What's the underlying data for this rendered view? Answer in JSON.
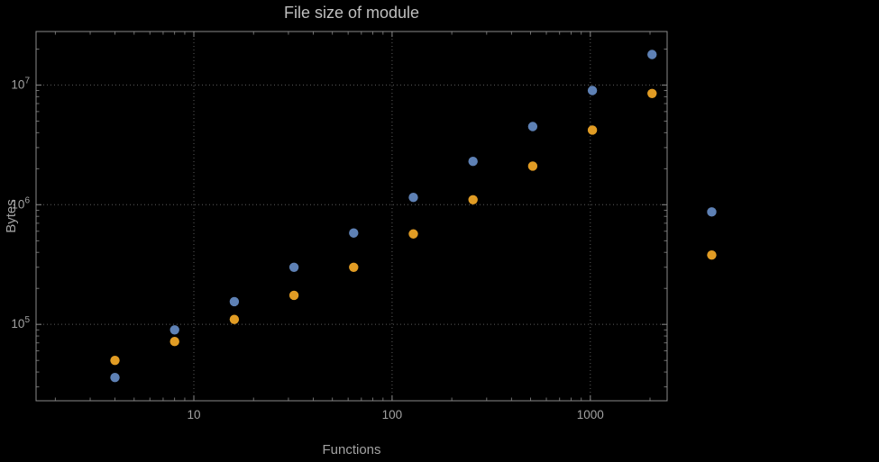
{
  "colors": {
    "background": "#000000",
    "frame": "#8a8a8a",
    "grid": "#5c5c5c",
    "tick_text": "#a2a2a2",
    "title_text": "#bfbfbf",
    "series_blue": "#5E81B5",
    "series_orange": "#E19C24"
  },
  "chart_data": {
    "type": "scatter",
    "title": "File size of module",
    "xlabel": "Functions",
    "ylabel": "Bytes",
    "x_scale": "log",
    "y_scale": "log",
    "xlim": [
      1.6,
      2440
    ],
    "ylim": [
      23000,
      28000000
    ],
    "grid": "dotted",
    "legend": "none",
    "x_major_ticks": [
      10,
      100,
      1000
    ],
    "x_major_tick_labels": [
      "10",
      "100",
      "1000"
    ],
    "y_major_ticks": [
      100000,
      1000000,
      10000000
    ],
    "y_major_tick_exponents": [
      5,
      6,
      7
    ],
    "x": [
      4,
      8,
      16,
      32,
      64,
      128,
      256,
      512,
      1024,
      2048,
      4096
    ],
    "series": [
      {
        "name": "blue-series",
        "color": "#5E81B5",
        "values": [
          36000,
          90000,
          155000,
          300000,
          580000,
          1150000,
          2300000,
          4500000,
          9000000,
          18000000,
          870000
        ]
      },
      {
        "name": "orange-series",
        "color": "#E19C24",
        "values": [
          50000,
          72000,
          110000,
          175000,
          300000,
          570000,
          1100000,
          2100000,
          4200000,
          8500000,
          380000
        ]
      }
    ]
  }
}
